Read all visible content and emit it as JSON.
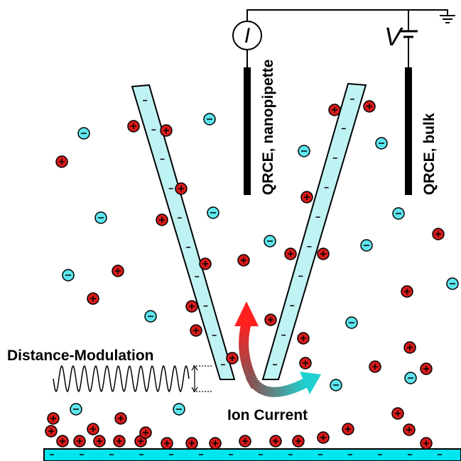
{
  "current_symbol": "I",
  "voltage_symbol": "V",
  "electrodes": [
    "QRCE, nanopipette",
    "QRCE, bulk"
  ],
  "labels": {
    "modulation": "Distance-Modulation",
    "current": "Ion Current"
  }
}
